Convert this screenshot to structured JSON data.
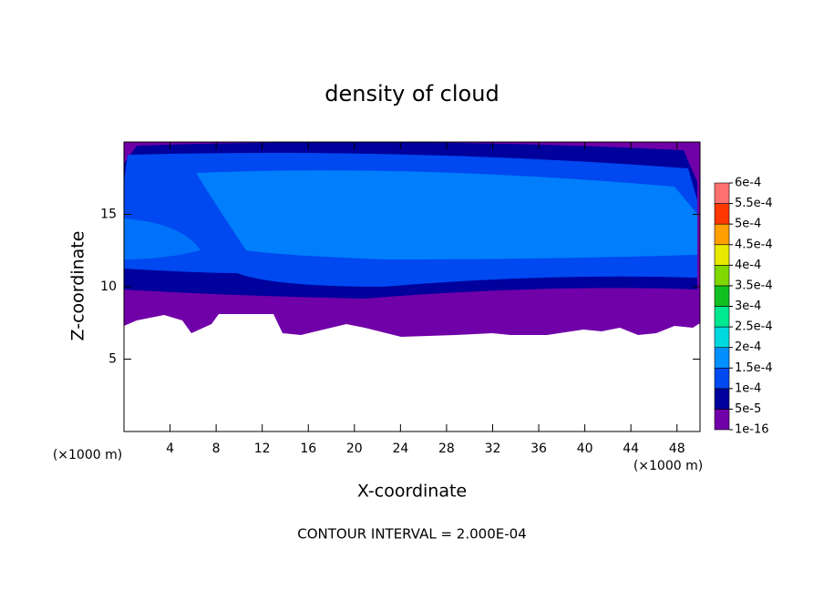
{
  "chart_data": {
    "type": "contour",
    "title": "density of cloud",
    "x_label": "X-coordinate",
    "y_label": "Z-coordinate",
    "x_unit": "(×1000 m)",
    "y_unit": "(×1000 m)",
    "footer": "CONTOUR INTERVAL = 2.000E-04",
    "xlim": [
      0,
      50
    ],
    "xticks": [
      4,
      8,
      12,
      16,
      20,
      24,
      28,
      32,
      36,
      40,
      44,
      48
    ],
    "ylim": [
      0,
      20
    ],
    "yticks": [
      5,
      10,
      15
    ],
    "colorbar": {
      "ticks": [
        {
          "value": 1e-16,
          "label": "1e-16"
        },
        {
          "value": 5e-05,
          "label": "5e-5"
        },
        {
          "value": 0.0001,
          "label": "1e-4"
        },
        {
          "value": 0.00015,
          "label": "1.5e-4"
        },
        {
          "value": 0.0002,
          "label": "2e-4"
        },
        {
          "value": 0.00025,
          "label": "2.5e-4"
        },
        {
          "value": 0.0003,
          "label": "3e-4"
        },
        {
          "value": 0.00035,
          "label": "3.5e-4"
        },
        {
          "value": 0.0004,
          "label": "4e-4"
        },
        {
          "value": 0.00045,
          "label": "4.5e-4"
        },
        {
          "value": 0.0005,
          "label": "5e-4"
        },
        {
          "value": 0.00055,
          "label": "5.5e-4"
        },
        {
          "value": 0.0006,
          "label": "6e-4"
        }
      ],
      "colors": [
        "#7000a8",
        "#00009c",
        "#0048f0",
        "#0090ff",
        "#00d8e0",
        "#00e890",
        "#10c020",
        "#80d800",
        "#e8e800",
        "#ffa000",
        "#ff3800",
        "#ff7070"
      ]
    }
  }
}
